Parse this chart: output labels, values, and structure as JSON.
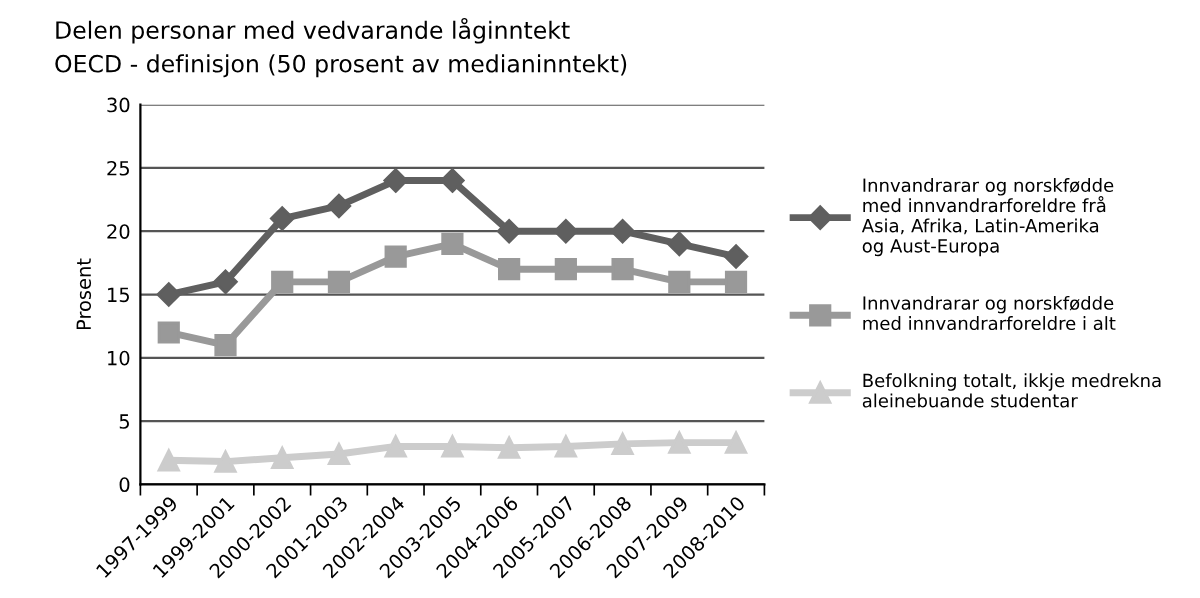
{
  "chart_data": {
    "type": "line",
    "title": "Delen personar med vedvarande låginntekt\nOECD - definisjon (50 prosent av medianinntekt)",
    "ylabel": "Prosent",
    "categories": [
      "1997-1999",
      "1999-2001",
      "2000-2002",
      "2001-2003",
      "2002-2004",
      "2003-2005",
      "2004-2006",
      "2005-2007",
      "2006-2008",
      "2007-2009",
      "2008-2010"
    ],
    "series": [
      {
        "name": "Innvandrarar og norskfødde\nmed innvandrarforeldre frå\nAsia, Afrika, Latin-Amerika\nog Aust-Europa",
        "color": "#5f5f5f",
        "marker": "diamond",
        "values": [
          15,
          16,
          21,
          22,
          24,
          24,
          20,
          20,
          20,
          19,
          18
        ]
      },
      {
        "name": "Innvandrarar og norskfødde\nmed innvandrarforeldre i alt",
        "color": "#999999",
        "marker": "square",
        "values": [
          12,
          11,
          16,
          16,
          18,
          19,
          17,
          17,
          17,
          16,
          16
        ]
      },
      {
        "name": "Befolkning totalt, ikkje medrekna\naleinebuande studentar",
        "color": "#cccccc",
        "marker": "triangle",
        "values": [
          1.9,
          1.8,
          2.1,
          2.4,
          3,
          3,
          2.9,
          3,
          3.2,
          3.3,
          3.3
        ]
      }
    ],
    "ylim": [
      0,
      30
    ],
    "yticks": [
      0,
      5,
      10,
      15,
      20,
      25,
      30
    ],
    "grid": "y",
    "legend": "right",
    "line_style": "solid"
  }
}
